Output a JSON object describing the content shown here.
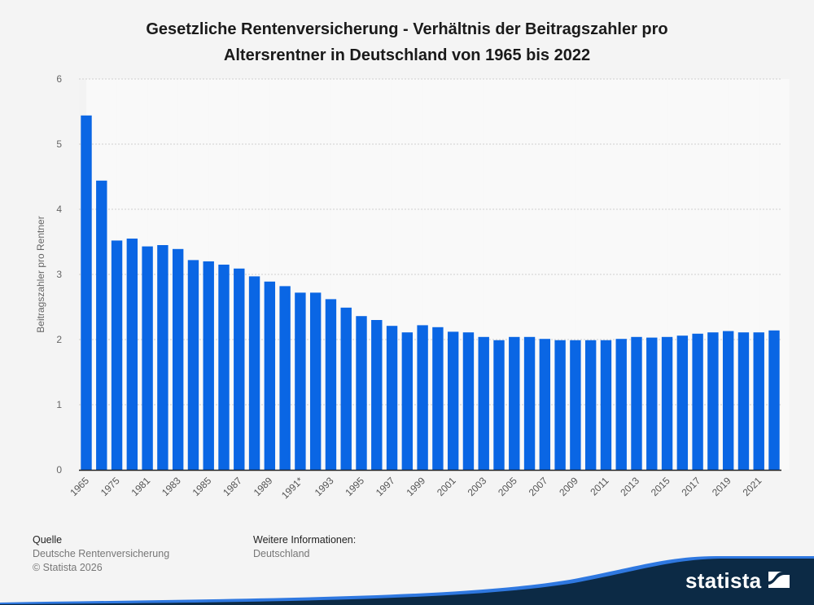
{
  "chart_data": {
    "type": "bar",
    "title": "Gesetzliche Rentenversicherung - Verhältnis der Beitragszahler pro Altersrentner in Deutschland von 1965 bis 2022",
    "title_lines": [
      "Gesetzliche Rentenversicherung - Verhältnis der Beitragszahler pro",
      "Altersrentner in Deutschland von 1965 bis 2022"
    ],
    "xlabel": "",
    "ylabel": "Beitragszahler pro Rentner",
    "ylim": [
      0,
      6
    ],
    "yticks": [
      0,
      1,
      2,
      3,
      4,
      5,
      6
    ],
    "grid": true,
    "legend": "none",
    "bar_color": "#0a66e4",
    "categories": [
      "1965",
      "1970",
      "1975",
      "1980",
      "1981",
      "1982",
      "1983",
      "1984",
      "1985",
      "1986",
      "1987",
      "1988",
      "1989",
      "1990",
      "1991*",
      "1992",
      "1993",
      "1994",
      "1995",
      "1996",
      "1997",
      "1998",
      "1999",
      "2000",
      "2001",
      "2002",
      "2003",
      "2004",
      "2005",
      "2006",
      "2007",
      "2008",
      "2009",
      "2010",
      "2011",
      "2012",
      "2013",
      "2014",
      "2015",
      "2016",
      "2017",
      "2018",
      "2019",
      "2020",
      "2021",
      "2022"
    ],
    "shown_tick_labels": [
      "1965",
      "1975",
      "1981",
      "1983",
      "1985",
      "1987",
      "1989",
      "1991*",
      "1993",
      "1995",
      "1997",
      "1999",
      "2001",
      "2003",
      "2005",
      "2007",
      "2009",
      "2011",
      "2013",
      "2015",
      "2017",
      "2019",
      "2021"
    ],
    "values": [
      5.44,
      4.44,
      3.52,
      3.55,
      3.43,
      3.45,
      3.39,
      3.22,
      3.2,
      3.15,
      3.09,
      2.97,
      2.89,
      2.82,
      2.72,
      2.72,
      2.62,
      2.49,
      2.36,
      2.3,
      2.21,
      2.11,
      2.22,
      2.19,
      2.12,
      2.11,
      2.04,
      1.99,
      2.04,
      2.04,
      2.01,
      1.99,
      1.99,
      1.99,
      1.99,
      2.01,
      2.04,
      2.03,
      2.04,
      2.06,
      2.09,
      2.11,
      2.13,
      2.11,
      2.11,
      2.14
    ]
  },
  "footer": {
    "source_heading": "Quelle",
    "source_text": "Deutsche Rentenversicherung",
    "copyright": "© Statista 2026",
    "info_heading": "Weitere Informationen:",
    "info_text": "Deutschland"
  },
  "brand": {
    "logo_text": "statista",
    "navy": "#0c2a45",
    "blue": "#2f78e0"
  }
}
